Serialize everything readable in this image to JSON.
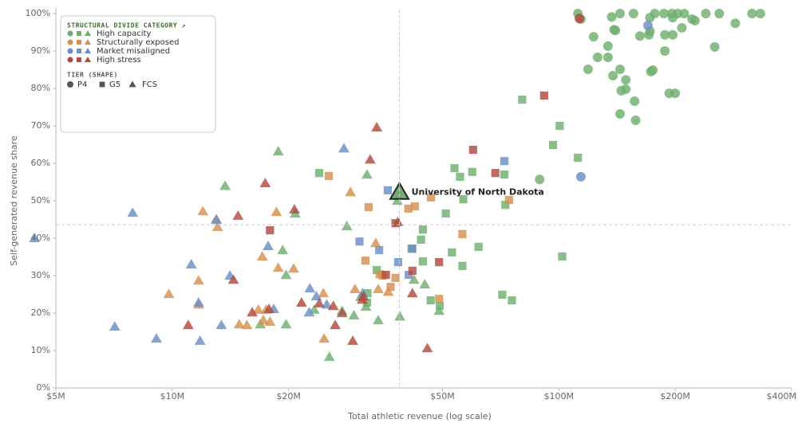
{
  "chart_data": {
    "type": "scatter",
    "x_label": "Total athletic revenue (log scale)",
    "y_label": "Self-generated revenue share",
    "xscale": "log",
    "xlim": [
      5,
      400
    ],
    "xticks": [
      {
        "value": 5,
        "label": "$5M"
      },
      {
        "value": 10,
        "label": "$10M"
      },
      {
        "value": 20,
        "label": "$20M"
      },
      {
        "value": 50,
        "label": "$50M"
      },
      {
        "value": 100,
        "label": "$100M"
      },
      {
        "value": 200,
        "label": "$200M"
      },
      {
        "value": 400,
        "label": "$400M"
      }
    ],
    "ylim": [
      0,
      100
    ],
    "yticks": [
      {
        "value": 0,
        "label": "0%"
      },
      {
        "value": 10,
        "label": "10%"
      },
      {
        "value": 20,
        "label": "20%"
      },
      {
        "value": 30,
        "label": "30%"
      },
      {
        "value": 40,
        "label": "40%"
      },
      {
        "value": 50,
        "label": "50%"
      },
      {
        "value": 60,
        "label": "60%"
      },
      {
        "value": 70,
        "label": "70%"
      },
      {
        "value": 80,
        "label": "80%"
      },
      {
        "value": 90,
        "label": "90%"
      },
      {
        "value": 100,
        "label": "100%"
      }
    ],
    "reference_lines": {
      "x": 38.7,
      "y": 43.6
    },
    "legend_title": "STRUCTURAL DIVIDE CATEGORY ↗",
    "tier_title": "TIER (SHAPE)",
    "tiers": [
      "P4",
      "G5",
      "FCS"
    ],
    "legend": "top-left",
    "highlight": {
      "label": "University of North Dakota",
      "x": 38.7,
      "y": 52.5,
      "tier": "FCS",
      "category": "High capacity"
    },
    "series": [
      {
        "name": "High capacity",
        "color": "#6fae6f",
        "x": [
          112,
          114,
          144,
          156,
          177,
          187,
          196,
          203,
          211,
          240,
          260,
          316,
          332,
          137,
          172,
          197,
          221,
          225,
          286,
          123,
          139,
          140,
          172,
          208,
          162,
          171,
          188,
          197,
          134,
          134,
          126,
          188,
          253,
          119,
          144,
          173,
          175,
          138,
          149,
          200,
          193,
          145,
          149,
          157,
          144,
          158,
          89.2,
          80.4,
          100.5,
          96.6,
          112,
          102,
          53.7,
          59.7,
          55.5,
          72.3,
          56.6,
          72.7,
          51,
          44.5,
          44,
          41.6,
          44.5,
          52.9,
          62,
          56.3,
          71.4,
          75.6,
          49.2,
          46.6,
          33.8,
          32,
          31.9,
          24,
          18.8,
          13.7,
          20.8,
          28.3,
          31.9,
          19.3,
          19.7,
          16.9,
          19.7,
          25.5,
          27.5,
          29.5,
          30.7,
          31.7,
          34.1,
          38.8,
          42.2,
          45,
          49,
          38.2,
          23.3
        ],
        "values": [
          100,
          98.5,
          100,
          100,
          100,
          100,
          100,
          100,
          100,
          100,
          100,
          100,
          100,
          99.1,
          98.9,
          98.9,
          98.5,
          98.1,
          97.4,
          93.8,
          95.7,
          95.5,
          95.3,
          96.2,
          94,
          94.3,
          94.3,
          94.3,
          91.3,
          88.3,
          88.3,
          90,
          91.1,
          85.1,
          85.1,
          84.5,
          84.9,
          83.4,
          82.3,
          78.7,
          78.7,
          79.4,
          79.8,
          76.6,
          73.2,
          71.5,
          55.7,
          77,
          70,
          64.9,
          61.5,
          35.1,
          58.7,
          57.7,
          56.4,
          57,
          50.4,
          48.9,
          46.6,
          42.3,
          39.6,
          37.2,
          33.8,
          36.2,
          37.7,
          32.6,
          24.9,
          23.4,
          21.9,
          23.4,
          31.5,
          25.3,
          22.8,
          57.4,
          63.2,
          54,
          46.6,
          43.2,
          57,
          36.8,
          30.2,
          17,
          17,
          8.3,
          20.6,
          19.4,
          24.3,
          21.7,
          18.1,
          19.1,
          28.9,
          27.7,
          20.6,
          50,
          20.9
        ],
        "tier": [
          "P4",
          "P4",
          "P4",
          "P4",
          "P4",
          "P4",
          "P4",
          "P4",
          "P4",
          "P4",
          "P4",
          "P4",
          "P4",
          "P4",
          "P4",
          "P4",
          "P4",
          "P4",
          "P4",
          "P4",
          "P4",
          "P4",
          "P4",
          "P4",
          "P4",
          "P4",
          "P4",
          "P4",
          "P4",
          "P4",
          "P4",
          "P4",
          "P4",
          "P4",
          "P4",
          "P4",
          "P4",
          "P4",
          "P4",
          "P4",
          "P4",
          "P4",
          "P4",
          "P4",
          "P4",
          "P4",
          "P4",
          "G5",
          "G5",
          "G5",
          "G5",
          "G5",
          "G5",
          "G5",
          "G5",
          "G5",
          "G5",
          "G5",
          "G5",
          "G5",
          "G5",
          "G5",
          "G5",
          "G5",
          "G5",
          "G5",
          "G5",
          "G5",
          "G5",
          "G5",
          "G5",
          "G5",
          "G5",
          "G5",
          "FCS",
          "FCS",
          "FCS",
          "FCS",
          "FCS",
          "FCS",
          "FCS",
          "FCS",
          "FCS",
          "FCS",
          "FCS",
          "FCS",
          "FCS",
          "FCS",
          "FCS",
          "FCS",
          "FCS",
          "FCS",
          "FCS",
          "FCS",
          "FCS"
        ]
      },
      {
        "name": "Structurally exposed",
        "color": "#d4904e",
        "x": [
          25.4,
          32.2,
          31.6,
          35,
          37.8,
          36.7,
          40.8,
          42.4,
          46.7,
          56.3,
          74.3,
          49,
          34.4,
          12,
          13,
          13.1,
          9.8,
          11.7,
          11.7,
          18.6,
          17.1,
          18.8,
          20.6,
          28.9,
          33.6,
          14.9,
          15.6,
          16.7,
          17.5,
          17.2,
          17.9,
          24.7,
          24.6,
          29.7,
          36.2,
          34.1
        ],
        "values": [
          56.6,
          48.3,
          34,
          30,
          29.4,
          27,
          47.9,
          48.5,
          50.9,
          41.1,
          50.2,
          23.8,
          30.4,
          47.2,
          45.1,
          43,
          25.1,
          28.7,
          22.3,
          47,
          35.1,
          32.1,
          31.9,
          52.3,
          38.7,
          17,
          16.8,
          20.9,
          20.9,
          18.1,
          17.7,
          13.2,
          25.3,
          26.4,
          25.7,
          26.4
        ],
        "tier": [
          "G5",
          "G5",
          "G5",
          "G5",
          "G5",
          "G5",
          "G5",
          "G5",
          "G5",
          "G5",
          "G5",
          "G5",
          "G5",
          "FCS",
          "FCS",
          "FCS",
          "FCS",
          "FCS",
          "FCS",
          "FCS",
          "FCS",
          "FCS",
          "FCS",
          "FCS",
          "FCS",
          "FCS",
          "FCS",
          "FCS",
          "FCS",
          "FCS",
          "FCS",
          "FCS",
          "FCS",
          "FCS",
          "FCS",
          "FCS"
        ]
      },
      {
        "name": "Market misaligned",
        "color": "#6b8fc4",
        "x": [
          114,
          170,
          36.1,
          30.5,
          34.3,
          41.8,
          38.4,
          40.9,
          72.3,
          7.9,
          4.4,
          7.1,
          9.1,
          11.2,
          11.7,
          11.8,
          13,
          13.4,
          14.1,
          17.7,
          18.3,
          22.7,
          23.6,
          22.6,
          25.1,
          27.8,
          31.1
        ],
        "values": [
          56.4,
          96.8,
          52.8,
          39.1,
          36.8,
          37.2,
          33.6,
          30.2,
          60.6,
          46.8,
          40,
          16.4,
          13.2,
          33,
          22.8,
          12.6,
          44.9,
          16.8,
          30,
          37.9,
          21.1,
          26.6,
          24.5,
          20.2,
          22.3,
          64,
          25.3
        ],
        "tier": [
          "P4",
          "P4",
          "G5",
          "G5",
          "G5",
          "G5",
          "G5",
          "G5",
          "G5",
          "FCS",
          "FCS",
          "FCS",
          "FCS",
          "FCS",
          "FCS",
          "FCS",
          "FCS",
          "FCS",
          "FCS",
          "FCS",
          "FCS",
          "FCS",
          "FCS",
          "FCS",
          "FCS",
          "FCS",
          "FCS"
        ]
      },
      {
        "name": "High stress",
        "color": "#b04a3f",
        "x": [
          113,
          91.6,
          60,
          68.5,
          37.8,
          17.9,
          35.7,
          41.8,
          49,
          33.8,
          32.5,
          17.4,
          14.8,
          20.7,
          14.4,
          11,
          16.1,
          17.8,
          21.6,
          24,
          26.1,
          27.5,
          26.4,
          29.3,
          31,
          41.8,
          45.7,
          31.2,
          38.3
        ],
        "values": [
          98.7,
          78.1,
          63.6,
          57.4,
          44,
          42.1,
          30.2,
          31.3,
          33.6,
          69.6,
          61,
          54.7,
          46,
          47.7,
          28.9,
          16.8,
          20.2,
          21.1,
          22.8,
          22.6,
          21.9,
          20,
          16.8,
          12.6,
          23.6,
          25.3,
          10.6,
          24.5,
          44.3
        ],
        "tier": [
          "P4",
          "G5",
          "G5",
          "G5",
          "G5",
          "G5",
          "G5",
          "G5",
          "G5",
          "FCS",
          "FCS",
          "FCS",
          "FCS",
          "FCS",
          "FCS",
          "FCS",
          "FCS",
          "FCS",
          "FCS",
          "FCS",
          "FCS",
          "FCS",
          "FCS",
          "FCS",
          "FCS",
          "FCS",
          "FCS",
          "FCS",
          "FCS"
        ]
      }
    ]
  }
}
